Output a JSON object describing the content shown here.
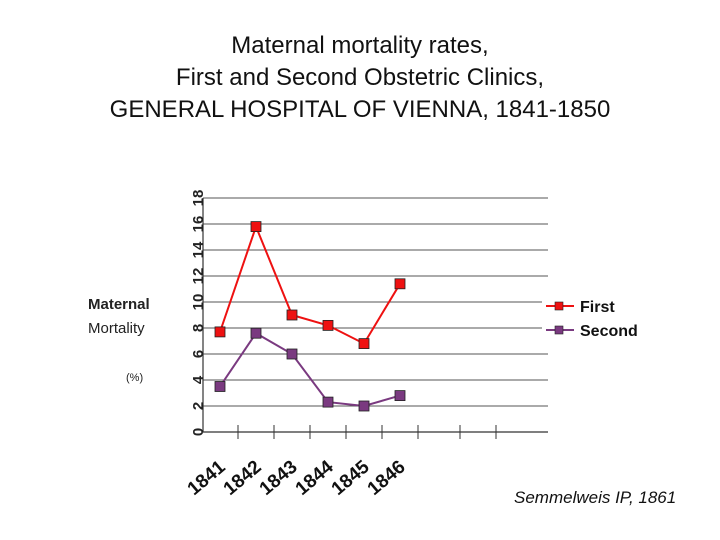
{
  "chart_data": {
    "type": "line",
    "title_lines": [
      "Maternal mortality rates,",
      "First and Second Obstetric Clinics,",
      "GENERAL HOSPITAL OF VIENNA, 1841-1850"
    ],
    "ylabel_lines": [
      "Maternal",
      "Mortality"
    ],
    "yunit": "(%)",
    "x": [
      "1841",
      "1842",
      "1843",
      "1844",
      "1845",
      "1846"
    ],
    "x_slots": 10,
    "y_ticks": [
      "0",
      "2",
      "4",
      "6",
      "8",
      "10",
      "12",
      "14",
      "16",
      "18"
    ],
    "ylim": [
      0,
      18
    ],
    "grid": true,
    "legend": "right",
    "series": [
      {
        "name": "First",
        "color": "#ee1111",
        "values": [
          7.7,
          15.8,
          9.0,
          8.2,
          6.8,
          11.4
        ]
      },
      {
        "name": "Second",
        "color": "#7a3a80",
        "values": [
          3.5,
          7.6,
          6.0,
          2.3,
          2.0,
          2.8
        ]
      }
    ]
  },
  "credit": "Semmelweis IP, 1861"
}
